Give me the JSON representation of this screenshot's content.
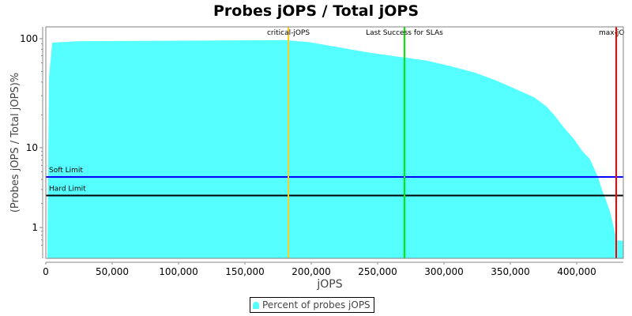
{
  "title": "Probes jOPS / Total jOPS",
  "legend": {
    "label": "Percent of probes jOPS",
    "color": "#55ffff"
  },
  "colors": {
    "area": "#55ffff",
    "critical": "#ffcc22",
    "last_success": "#00ee00",
    "max": "#ff0000",
    "soft_limit": "#0000ff",
    "hard_limit": "#000000",
    "plot_border": "#808080"
  },
  "chart_data": {
    "type": "area",
    "title": "Probes jOPS / Total jOPS",
    "xlabel": "jOPS",
    "ylabel": "(Probes jOPS / Total jOPS)%",
    "xscale": "linear",
    "yscale": "log",
    "xlim": [
      0,
      435000
    ],
    "ylim": [
      0.55,
      130
    ],
    "x_ticks": [
      0,
      50000,
      100000,
      150000,
      200000,
      250000,
      300000,
      350000,
      400000
    ],
    "x_tick_labels": [
      "0",
      "50,000",
      "100,000",
      "150,000",
      "200,000",
      "250,000",
      "300,000",
      "350,000",
      "400,000"
    ],
    "y_ticks": [
      1,
      10,
      100
    ],
    "y_tick_labels": [
      "1",
      "10",
      "100"
    ],
    "grid": false,
    "legend_position": "bottom",
    "series": [
      {
        "name": "Percent of probes jOPS",
        "x": [
          1200,
          2400,
          4800,
          25000,
          180000,
          198000,
          222000,
          245000,
          267000,
          287000,
          305000,
          323000,
          338000,
          353000,
          368000,
          377000,
          383000,
          390000,
          398000,
          404000,
          410000,
          416000,
          419000,
          422000,
          425000,
          428000,
          430000,
          436000
        ],
        "y": [
          0.55,
          44,
          92,
          95,
          97,
          93,
          83,
          74,
          68,
          63,
          56,
          49,
          42,
          35,
          29,
          24,
          20,
          15.5,
          12,
          9.2,
          7.2,
          4.3,
          3.0,
          2.2,
          1.6,
          1.0,
          0.69,
          0.68
        ]
      }
    ],
    "vertical_markers": [
      {
        "label": "critical-jOPS",
        "x": 182500,
        "color": "#ffcc22"
      },
      {
        "label": "Last Success for SLAs",
        "x": 270000,
        "color": "#00ee00"
      },
      {
        "label": "max-jOPS",
        "x": 429500,
        "color": "#ff0000"
      }
    ],
    "horizontal_markers": [
      {
        "label": "Soft Limit",
        "y": 5,
        "color": "#0000ff"
      },
      {
        "label": "Hard Limit",
        "y": 3,
        "color": "#000000"
      }
    ]
  }
}
